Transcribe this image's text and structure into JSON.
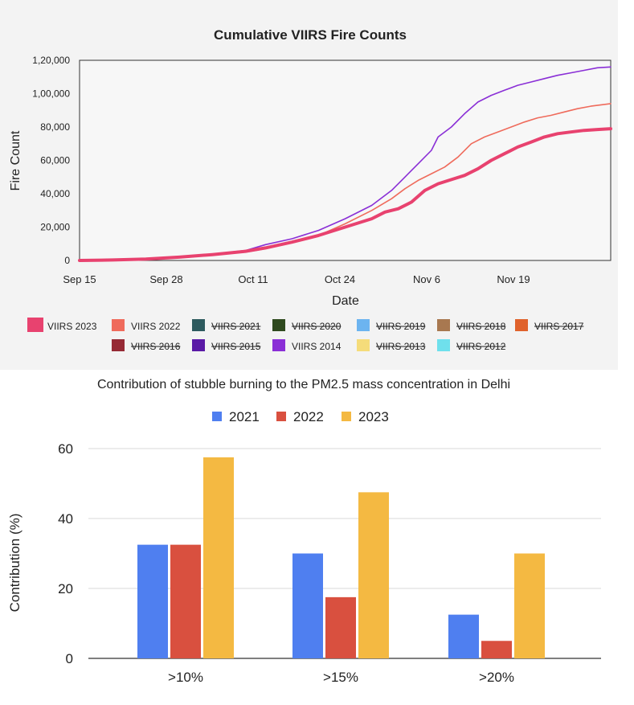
{
  "chart_data": [
    {
      "type": "line",
      "title": "Cumulative VIIRS Fire Counts",
      "xlabel": "Date",
      "ylabel": "Fire Count",
      "x_tick_labels": [
        "Sep 15",
        "Sep 28",
        "Oct 11",
        "Oct 24",
        "Nov 6",
        "Nov 19"
      ],
      "y_tick_labels": [
        "0",
        "20,000",
        "40,000",
        "60,000",
        "80,000",
        "1,00,000",
        "1,20,000"
      ],
      "ylim": [
        0,
        120000
      ],
      "grid": false,
      "legend_position": "bottom",
      "legend": [
        {
          "name": "VIIRS 2023",
          "color": "#e8426f",
          "hidden": false
        },
        {
          "name": "VIIRS 2022",
          "color": "#ef6b5c",
          "hidden": false
        },
        {
          "name": "VIIRS 2021",
          "color": "#2d5a5e",
          "hidden": true
        },
        {
          "name": "VIIRS 2020",
          "color": "#2f4a1f",
          "hidden": true
        },
        {
          "name": "VIIRS 2019",
          "color": "#6cb4f0",
          "hidden": true
        },
        {
          "name": "VIIRS 2018",
          "color": "#a87850",
          "hidden": true
        },
        {
          "name": "VIIRS 2017",
          "color": "#e0622c",
          "hidden": true
        },
        {
          "name": "VIIRS 2016",
          "color": "#962a35",
          "hidden": true
        },
        {
          "name": "VIIRS 2015",
          "color": "#5a1aa6",
          "hidden": true
        },
        {
          "name": "VIIRS 2014",
          "color": "#8a2fd6",
          "hidden": false
        },
        {
          "name": "VIIRS 2013",
          "color": "#f5dc7a",
          "hidden": true
        },
        {
          "name": "VIIRS 2012",
          "color": "#6fe0ec",
          "hidden": true
        }
      ],
      "series": [
        {
          "name": "VIIRS 2014",
          "color": "#8a2fd6",
          "width": 1.6,
          "points": [
            [
              0,
              0
            ],
            [
              5,
              300
            ],
            [
              10,
              800
            ],
            [
              15,
              2000
            ],
            [
              20,
              3800
            ],
            [
              25,
              6000
            ],
            [
              28,
              9500
            ],
            [
              32,
              13000
            ],
            [
              36,
              18000
            ],
            [
              40,
              25000
            ],
            [
              44,
              33000
            ],
            [
              47,
              42000
            ],
            [
              49,
              50000
            ],
            [
              51,
              58000
            ],
            [
              53,
              66000
            ],
            [
              54,
              74000
            ],
            [
              56,
              80000
            ],
            [
              58,
              88000
            ],
            [
              60,
              95000
            ],
            [
              62,
              99000
            ],
            [
              64,
              102000
            ],
            [
              66,
              105000
            ],
            [
              68,
              107000
            ],
            [
              70,
              109000
            ],
            [
              72,
              111000
            ],
            [
              74,
              112500
            ],
            [
              76,
              114000
            ],
            [
              78,
              115500
            ],
            [
              80,
              116000
            ]
          ]
        },
        {
          "name": "VIIRS 2022",
          "color": "#ef6b5c",
          "width": 1.6,
          "points": [
            [
              0,
              0
            ],
            [
              5,
              300
            ],
            [
              10,
              800
            ],
            [
              15,
              2000
            ],
            [
              20,
              3500
            ],
            [
              25,
              5000
            ],
            [
              28,
              7000
            ],
            [
              32,
              11000
            ],
            [
              36,
              15000
            ],
            [
              40,
              22000
            ],
            [
              44,
              30000
            ],
            [
              47,
              37000
            ],
            [
              49,
              43000
            ],
            [
              51,
              48000
            ],
            [
              53,
              52000
            ],
            [
              55,
              56000
            ],
            [
              57,
              62000
            ],
            [
              59,
              70000
            ],
            [
              61,
              74000
            ],
            [
              63,
              77000
            ],
            [
              65,
              80000
            ],
            [
              67,
              83000
            ],
            [
              69,
              85500
            ],
            [
              71,
              87000
            ],
            [
              73,
              89000
            ],
            [
              75,
              91000
            ],
            [
              77,
              92500
            ],
            [
              80,
              94000
            ]
          ]
        },
        {
          "name": "VIIRS 2023",
          "color": "#e8426f",
          "width": 4,
          "points": [
            [
              0,
              0
            ],
            [
              5,
              300
            ],
            [
              10,
              800
            ],
            [
              15,
              2000
            ],
            [
              20,
              3500
            ],
            [
              25,
              5500
            ],
            [
              28,
              7500
            ],
            [
              32,
              11000
            ],
            [
              36,
              15000
            ],
            [
              40,
              20000
            ],
            [
              44,
              25000
            ],
            [
              46,
              29000
            ],
            [
              48,
              31000
            ],
            [
              50,
              35000
            ],
            [
              52,
              42000
            ],
            [
              54,
              46000
            ],
            [
              56,
              48500
            ],
            [
              58,
              51000
            ],
            [
              60,
              55000
            ],
            [
              62,
              60000
            ],
            [
              64,
              64000
            ],
            [
              66,
              68000
            ],
            [
              68,
              71000
            ],
            [
              70,
              74000
            ],
            [
              72,
              76000
            ],
            [
              74,
              77000
            ],
            [
              76,
              78000
            ],
            [
              78,
              78500
            ],
            [
              80,
              79000
            ]
          ]
        }
      ]
    },
    {
      "type": "bar",
      "title": "Contribution of stubble burning to the PM2.5 mass concentration in Delhi",
      "xlabel": "",
      "ylabel": "Contribution (%)",
      "categories": [
        ">10%",
        ">15%",
        ">20%"
      ],
      "y_tick_labels": [
        "0",
        "20",
        "40",
        "60"
      ],
      "ylim": [
        0,
        60
      ],
      "grid": true,
      "legend_position": "top",
      "series": [
        {
          "name": "2021",
          "color": "#4f7ff0",
          "values": [
            32.5,
            30,
            12.5
          ]
        },
        {
          "name": "2022",
          "color": "#d9503f",
          "values": [
            32.5,
            17.5,
            5
          ]
        },
        {
          "name": "2023",
          "color": "#f4b942",
          "values": [
            57.5,
            47.5,
            30
          ]
        }
      ]
    }
  ]
}
